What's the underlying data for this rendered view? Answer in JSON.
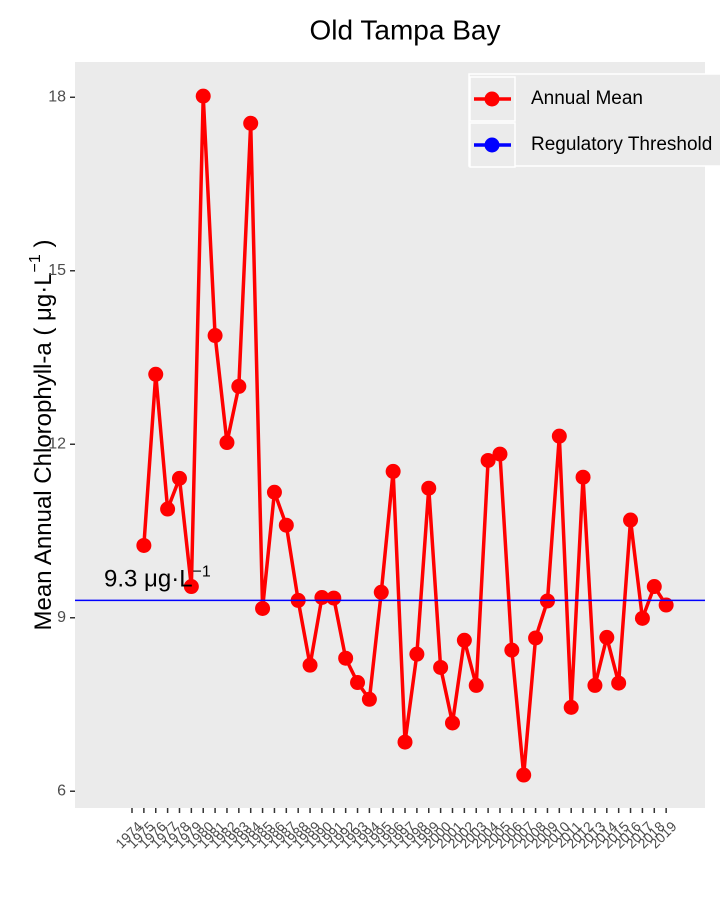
{
  "chart_data": {
    "type": "line",
    "title": "Old Tampa Bay",
    "ylabel": "Mean Annual Chlorophyll-a ( μg·L",
    "ylabel_sup": "−1",
    "ylabel_end": " )",
    "categories": [
      "1974",
      "1975",
      "1976",
      "1977",
      "1978",
      "1979",
      "1980",
      "1981",
      "1982",
      "1983",
      "1984",
      "1985",
      "1986",
      "1987",
      "1988",
      "1989",
      "1990",
      "1991",
      "1992",
      "1993",
      "1994",
      "1995",
      "1996",
      "1997",
      "1998",
      "1999",
      "2000",
      "2001",
      "2002",
      "2003",
      "2004",
      "2005",
      "2006",
      "2007",
      "2008",
      "2009",
      "2010",
      "2011",
      "2012",
      "2013",
      "2014",
      "2015",
      "2016",
      "2017",
      "2018",
      "2019"
    ],
    "series": [
      {
        "name": "Annual Mean",
        "color": "#ff0000",
        "values": [
          null,
          10.25,
          13.21,
          10.88,
          11.41,
          9.54,
          18.02,
          13.88,
          12.03,
          13.0,
          17.55,
          9.16,
          11.17,
          10.6,
          9.3,
          8.18,
          9.35,
          9.34,
          8.3,
          7.88,
          7.59,
          9.44,
          11.53,
          6.85,
          8.37,
          11.24,
          8.14,
          7.18,
          8.61,
          7.83,
          11.72,
          11.83,
          8.44,
          6.28,
          8.65,
          9.29,
          12.14,
          7.45,
          11.43,
          7.83,
          8.66,
          7.87,
          10.69,
          8.99,
          9.54,
          9.22
        ]
      },
      {
        "name": "Regulatory Threshold",
        "color": "#0000ff",
        "threshold": 9.3
      }
    ],
    "annotation": "9.3 μg·L",
    "annotation_sup": "−1",
    "ylim": [
      5.71,
      18.61
    ],
    "yticks": [
      6,
      9,
      12,
      15,
      18
    ],
    "legend": "top-right"
  }
}
